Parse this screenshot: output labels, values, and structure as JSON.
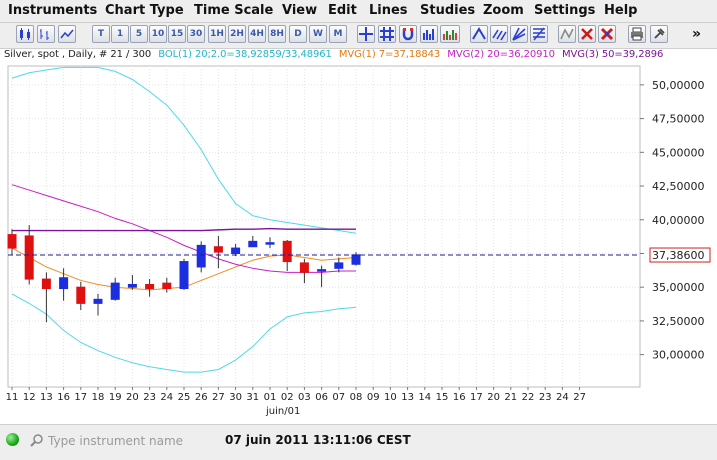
{
  "menu": [
    "Instruments",
    "Chart Type",
    "Time Scale",
    "View",
    "Edit",
    "Lines",
    "Studies",
    "Zoom",
    "Settings",
    "Help"
  ],
  "toolbar": {
    "timescale_buttons": [
      "T",
      "1",
      "5",
      "10",
      "15",
      "30",
      "1H",
      "2H",
      "4H",
      "8H",
      "D",
      "W",
      "M"
    ],
    "overflow": "»"
  },
  "info": {
    "instrument": "Silver, spot , Daily, # 21 / 300",
    "bol": "BOL(1) 20;2.0=38,92859/33,48961",
    "mvg1": "MVG(1) 7=37,18843",
    "mvg2": "MVG(2) 20=36,20910",
    "mvg3": "MVG(3) 50=39,2896"
  },
  "colors": {
    "bollinger": "#4fd8ea",
    "mvg1": "#f28a1e",
    "mvg2": "#c81ec8",
    "mvg3": "#7a149a",
    "up": "#1b2ee0",
    "down": "#e01010",
    "price_line": "#1e1e9c",
    "price_box": "#d02020"
  },
  "chart_data": {
    "type": "candlestick",
    "x_ticks": [
      "11",
      "12",
      "13",
      "16",
      "17",
      "18",
      "19",
      "20",
      "23",
      "24",
      "25",
      "26",
      "27",
      "30",
      "31",
      "01",
      "02",
      "03",
      "06",
      "07",
      "08",
      "09",
      "10",
      "13",
      "14",
      "15",
      "16",
      "17",
      "20",
      "21",
      "22",
      "23",
      "24",
      "27"
    ],
    "x_sublabel": "juin/01",
    "y_ticks": [
      "50,00000",
      "47,50000",
      "45,00000",
      "42,50000",
      "40,00000",
      "37,50000",
      "35,00000",
      "32,50000",
      "30,00000"
    ],
    "y_values": [
      50,
      47.5,
      45,
      42.5,
      40,
      37.5,
      35,
      32.5,
      30
    ],
    "y_range": [
      27.6,
      51.4
    ],
    "current_price": 37.386,
    "current_price_label": "37,38600",
    "candles": [
      {
        "o": 38.9,
        "h": 39.3,
        "l": 37.4,
        "c": 37.9
      },
      {
        "o": 38.8,
        "h": 39.6,
        "l": 35.2,
        "c": 35.6
      },
      {
        "o": 35.6,
        "h": 36.1,
        "l": 32.4,
        "c": 34.9
      },
      {
        "o": 34.9,
        "h": 36.4,
        "l": 34.0,
        "c": 35.7
      },
      {
        "o": 35.0,
        "h": 35.4,
        "l": 33.3,
        "c": 33.8
      },
      {
        "o": 33.8,
        "h": 34.5,
        "l": 32.9,
        "c": 34.1
      },
      {
        "o": 34.1,
        "h": 35.7,
        "l": 34.0,
        "c": 35.3
      },
      {
        "o": 35.0,
        "h": 35.9,
        "l": 34.8,
        "c": 35.2
      },
      {
        "o": 35.2,
        "h": 35.6,
        "l": 34.3,
        "c": 34.9
      },
      {
        "o": 35.3,
        "h": 35.7,
        "l": 34.6,
        "c": 34.9
      },
      {
        "o": 34.9,
        "h": 37.1,
        "l": 34.8,
        "c": 36.9
      },
      {
        "o": 36.5,
        "h": 38.4,
        "l": 36.1,
        "c": 38.1
      },
      {
        "o": 38.0,
        "h": 38.8,
        "l": 36.4,
        "c": 37.6
      },
      {
        "o": 37.5,
        "h": 38.2,
        "l": 37.3,
        "c": 37.9
      },
      {
        "o": 38.0,
        "h": 38.8,
        "l": 38.0,
        "c": 38.4
      },
      {
        "o": 38.2,
        "h": 38.7,
        "l": 37.9,
        "c": 38.3
      },
      {
        "o": 38.4,
        "h": 38.5,
        "l": 36.2,
        "c": 36.9
      },
      {
        "o": 36.8,
        "h": 37.1,
        "l": 35.3,
        "c": 36.1
      },
      {
        "o": 36.2,
        "h": 36.6,
        "l": 35.0,
        "c": 36.3
      },
      {
        "o": 36.4,
        "h": 37.2,
        "l": 36.1,
        "c": 36.8
      },
      {
        "o": 36.7,
        "h": 37.6,
        "l": 36.6,
        "c": 37.4
      }
    ],
    "series": [
      {
        "name": "BOL upper",
        "values": [
          50.5,
          50.9,
          51.1,
          51.3,
          51.3,
          51.3,
          51.0,
          50.4,
          49.5,
          48.5,
          47.0,
          45.2,
          43.0,
          41.2,
          40.3,
          40.0,
          39.8,
          39.6,
          39.4,
          39.2,
          39.0
        ]
      },
      {
        "name": "BOL lower",
        "values": [
          34.5,
          33.8,
          33.0,
          31.8,
          30.9,
          30.3,
          29.8,
          29.4,
          29.1,
          28.9,
          28.7,
          28.7,
          28.9,
          29.6,
          30.6,
          31.9,
          32.8,
          33.1,
          33.2,
          33.4,
          33.5
        ]
      },
      {
        "name": "MVG(1) 7",
        "values": [
          37.9,
          37.2,
          36.5,
          36.0,
          35.5,
          35.2,
          35.0,
          34.9,
          34.8,
          34.9,
          35.0,
          35.5,
          36.0,
          36.5,
          37.0,
          37.3,
          37.4,
          37.2,
          37.0,
          37.1,
          37.2
        ]
      },
      {
        "name": "MVG(2) 20",
        "values": [
          42.6,
          42.2,
          41.8,
          41.4,
          41.0,
          40.6,
          40.1,
          39.7,
          39.2,
          38.7,
          38.1,
          37.6,
          37.1,
          36.7,
          36.4,
          36.2,
          36.1,
          36.1,
          36.1,
          36.2,
          36.2
        ]
      },
      {
        "name": "MVG(3) 50",
        "values": [
          39.2,
          39.2,
          39.2,
          39.2,
          39.2,
          39.2,
          39.2,
          39.2,
          39.2,
          39.2,
          39.2,
          39.2,
          39.25,
          39.3,
          39.3,
          39.35,
          39.3,
          39.3,
          39.3,
          39.3,
          39.3
        ]
      }
    ]
  },
  "status": {
    "search_placeholder": "Type instrument name",
    "datetime": "07 juin 2011 13:11:06 CEST"
  }
}
